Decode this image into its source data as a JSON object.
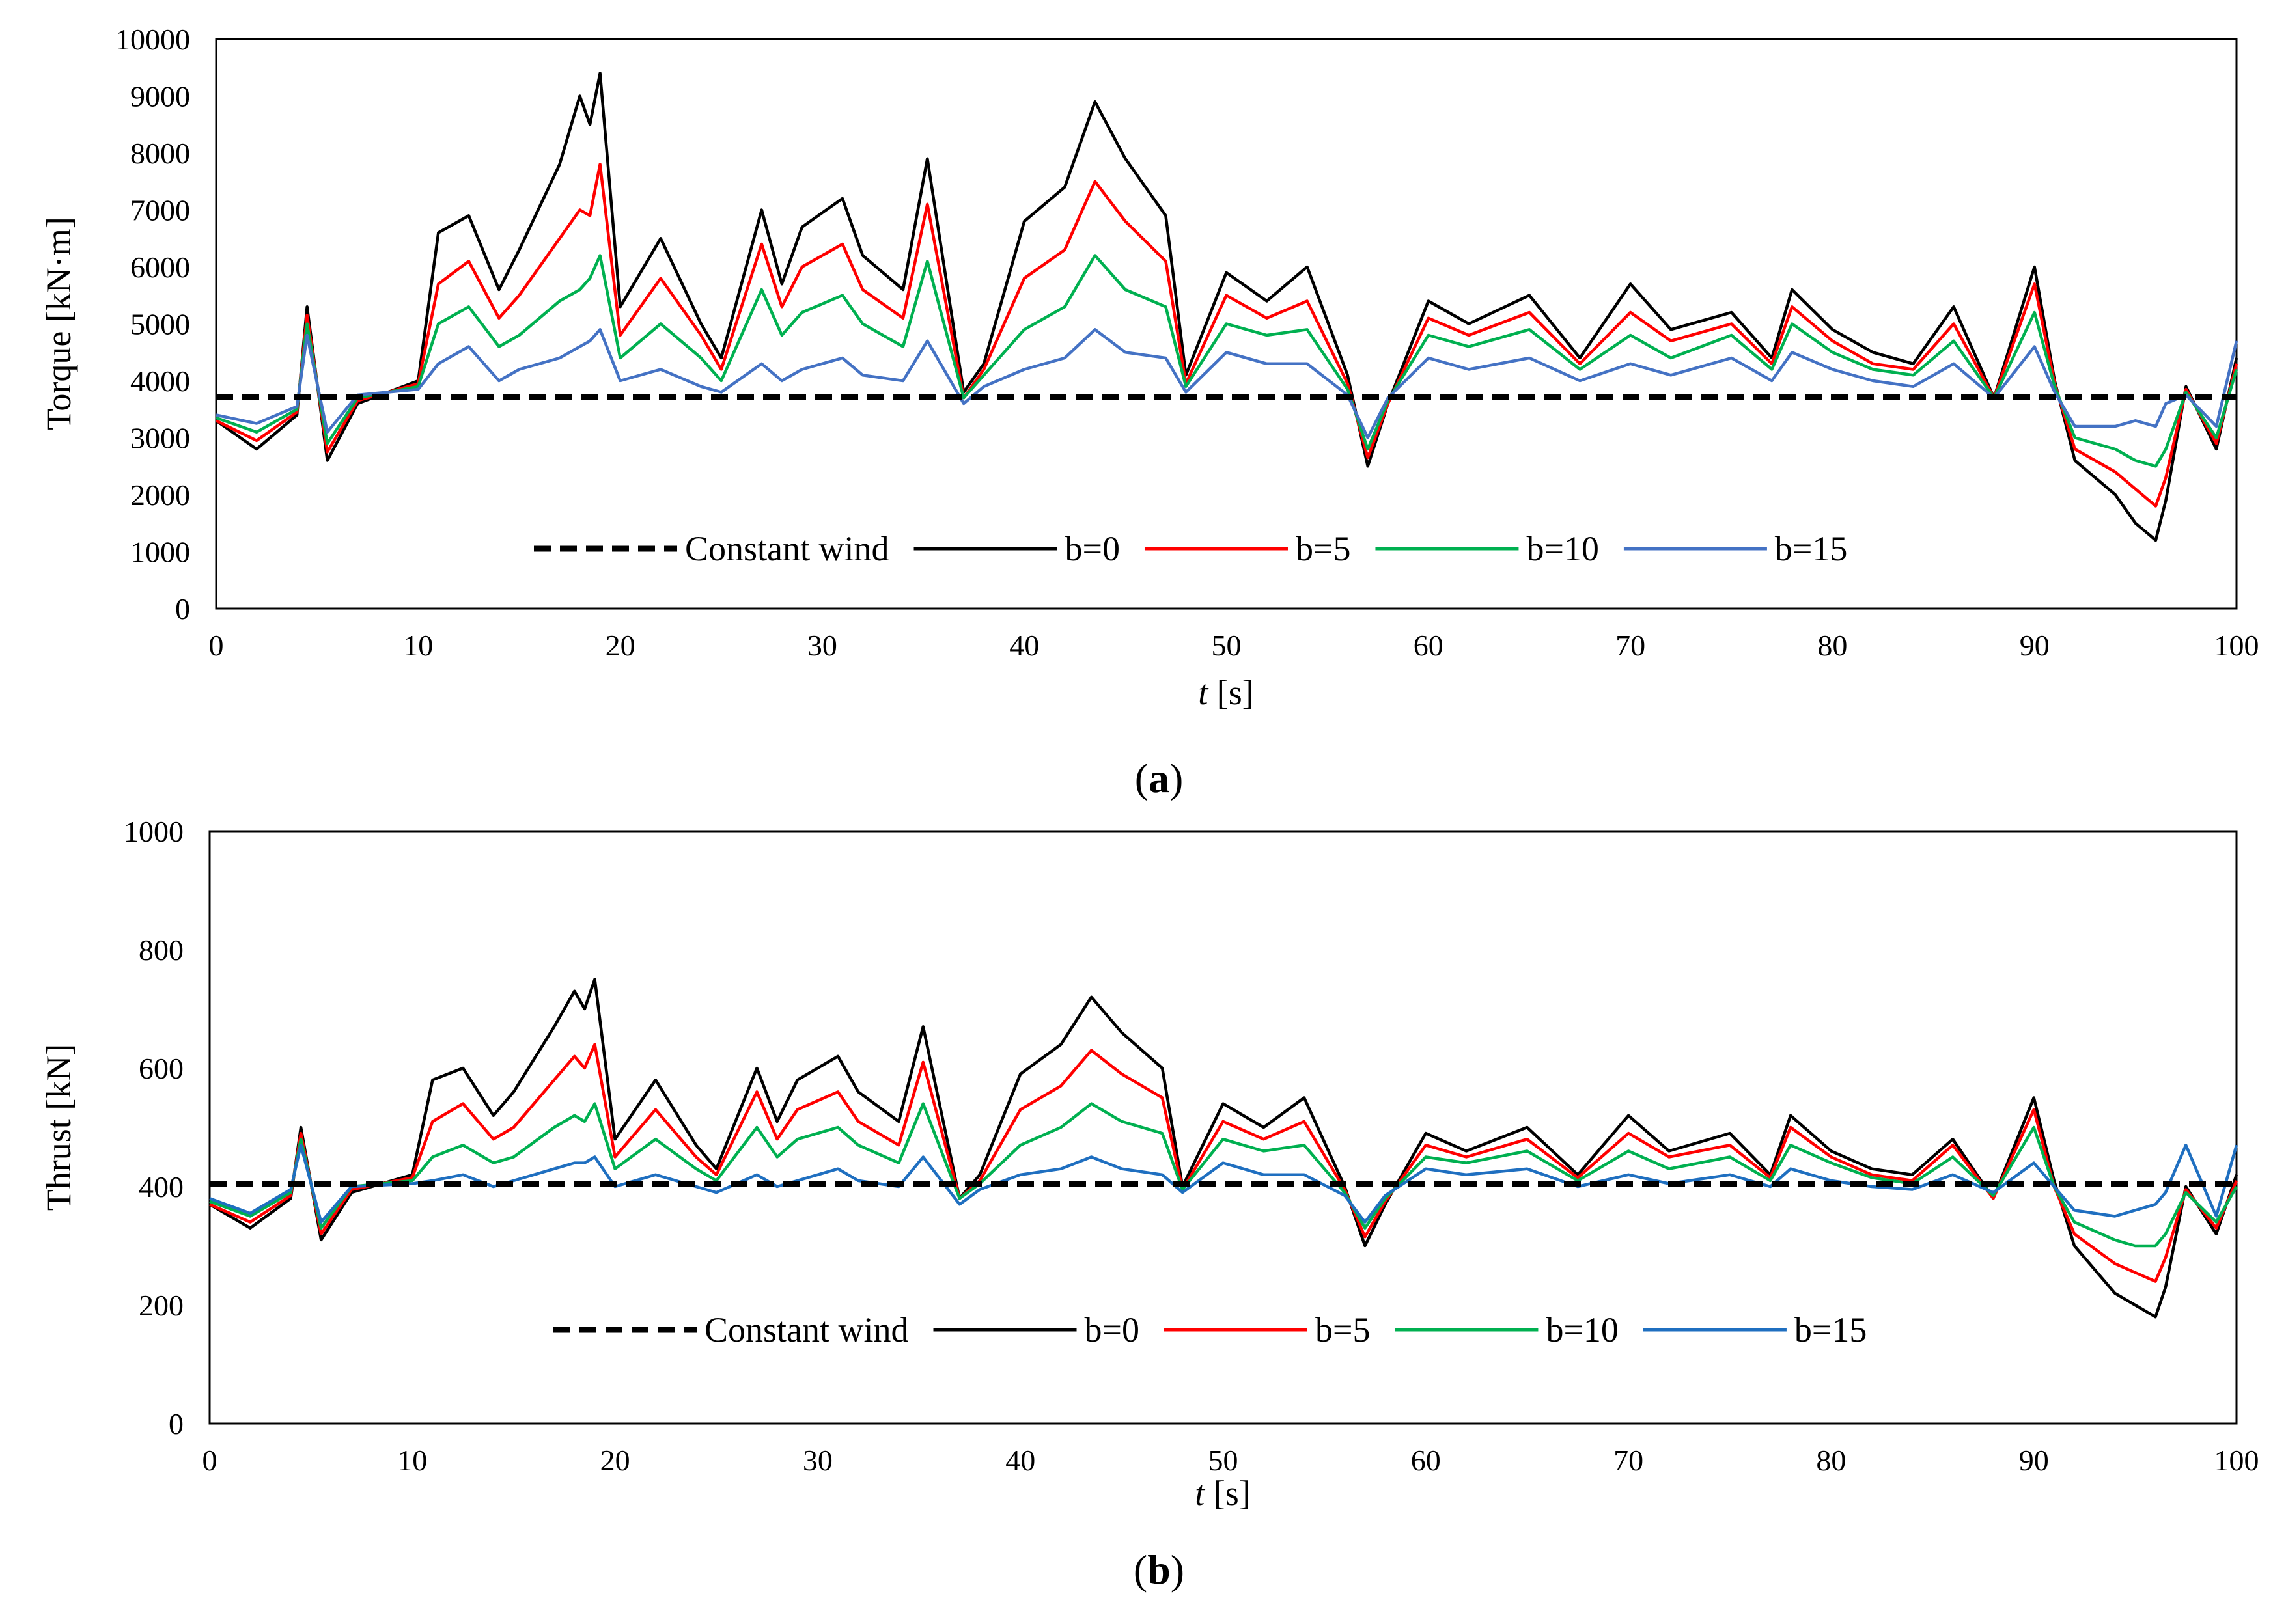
{
  "chart_data": [
    {
      "type": "line",
      "panel_label": "a",
      "xlabel_italic": "t",
      "xlabel_unit": "[s]",
      "ylabel": "Torque [kN·m]",
      "xlim": [
        0,
        100
      ],
      "ylim": [
        0,
        10000
      ],
      "xticks": [
        0,
        10,
        20,
        30,
        40,
        50,
        60,
        70,
        80,
        90,
        100
      ],
      "yticks": [
        0,
        1000,
        2000,
        3000,
        4000,
        5000,
        6000,
        7000,
        8000,
        9000,
        10000
      ],
      "legend_position": "bottom",
      "x": [
        0,
        2,
        4,
        4.5,
        5.5,
        7,
        10,
        11,
        12.5,
        14,
        15,
        17,
        18,
        18.5,
        19,
        20,
        22,
        24,
        25,
        27,
        28,
        29,
        31,
        32,
        34,
        35.2,
        37,
        38,
        40,
        42,
        43.5,
        45,
        47,
        48,
        50,
        52,
        54,
        56,
        57,
        58,
        60,
        62,
        65,
        67.5,
        70,
        72,
        75,
        77,
        78,
        80,
        82,
        84,
        86,
        88,
        90,
        91,
        92,
        94,
        95,
        96,
        96.5,
        97.5,
        99,
        100
      ],
      "series": [
        {
          "name": "Constant wind",
          "color": "#000000",
          "dash": true,
          "values": [
            3720,
            3720,
            3720,
            3720,
            3720,
            3720,
            3720,
            3720,
            3720,
            3720,
            3720,
            3720,
            3720,
            3720,
            3720,
            3720,
            3720,
            3720,
            3720,
            3720,
            3720,
            3720,
            3720,
            3720,
            3720,
            3720,
            3720,
            3720,
            3720,
            3720,
            3720,
            3720,
            3720,
            3720,
            3720,
            3720,
            3720,
            3720,
            3720,
            3720,
            3720,
            3720,
            3720,
            3720,
            3720,
            3720,
            3720,
            3720,
            3720,
            3720,
            3720,
            3720,
            3720,
            3720,
            3720,
            3720,
            3720,
            3720,
            3720,
            3720,
            3720,
            3720,
            3720,
            3720
          ]
        },
        {
          "name": "b=0",
          "color": "#000000",
          "values": [
            3300,
            2800,
            3400,
            5300,
            2600,
            3600,
            4000,
            6600,
            6900,
            5600,
            6300,
            7800,
            9000,
            8500,
            9400,
            5300,
            6500,
            5000,
            4400,
            7000,
            5700,
            6700,
            7200,
            6200,
            5600,
            7900,
            3800,
            4300,
            6800,
            7400,
            8900,
            7900,
            6900,
            4100,
            5900,
            5400,
            6000,
            4100,
            2500,
            3600,
            5400,
            5000,
            5500,
            4400,
            5700,
            4900,
            5200,
            4400,
            5600,
            4900,
            4500,
            4300,
            5300,
            3700,
            6000,
            4000,
            2600,
            2000,
            1500,
            1200,
            1900,
            3900,
            2800,
            4400
          ]
        },
        {
          "name": "b=5",
          "color": "#ff0000",
          "values": [
            3300,
            2950,
            3450,
            5150,
            2750,
            3650,
            3950,
            5700,
            6100,
            5100,
            5500,
            6500,
            7000,
            6900,
            7800,
            4800,
            5800,
            4800,
            4200,
            6400,
            5300,
            6000,
            6400,
            5600,
            5100,
            7100,
            3700,
            4200,
            5800,
            6300,
            7500,
            6800,
            6100,
            3950,
            5500,
            5100,
            5400,
            3950,
            2650,
            3600,
            5100,
            4800,
            5200,
            4300,
            5200,
            4700,
            5000,
            4300,
            5300,
            4700,
            4300,
            4200,
            5000,
            3700,
            5700,
            3950,
            2800,
            2400,
            2100,
            1800,
            2300,
            3850,
            2900,
            4300
          ]
        },
        {
          "name": "b=10",
          "color": "#00b050",
          "values": [
            3350,
            3100,
            3500,
            5000,
            2900,
            3700,
            3900,
            5000,
            5300,
            4600,
            4800,
            5400,
            5600,
            5800,
            6200,
            4400,
            5000,
            4400,
            4000,
            5600,
            4800,
            5200,
            5500,
            5000,
            4600,
            6100,
            3700,
            4100,
            4900,
            5300,
            6200,
            5600,
            5300,
            3900,
            5000,
            4800,
            4900,
            3850,
            2800,
            3650,
            4800,
            4600,
            4900,
            4200,
            4800,
            4400,
            4800,
            4200,
            5000,
            4500,
            4200,
            4100,
            4700,
            3700,
            5200,
            3900,
            3000,
            2800,
            2600,
            2500,
            2800,
            3800,
            3000,
            4200
          ]
        },
        {
          "name": "b=15",
          "color": "#4472c4",
          "values": [
            3400,
            3250,
            3550,
            4800,
            3100,
            3750,
            3850,
            4300,
            4600,
            4000,
            4200,
            4400,
            4600,
            4700,
            4900,
            4000,
            4200,
            3900,
            3800,
            4300,
            4000,
            4200,
            4400,
            4100,
            4000,
            4700,
            3600,
            3900,
            4200,
            4400,
            4900,
            4500,
            4400,
            3800,
            4500,
            4300,
            4300,
            3750,
            3000,
            3700,
            4400,
            4200,
            4400,
            4000,
            4300,
            4100,
            4400,
            4000,
            4500,
            4200,
            4000,
            3900,
            4300,
            3700,
            4600,
            3800,
            3200,
            3200,
            3300,
            3200,
            3600,
            3750,
            3200,
            4700
          ]
        }
      ]
    },
    {
      "type": "line",
      "panel_label": "b",
      "xlabel_italic": "t",
      "xlabel_unit": "[s]",
      "ylabel": "Thrust [kN]",
      "xlim": [
        0,
        100
      ],
      "ylim": [
        0,
        1000
      ],
      "xticks": [
        0,
        10,
        20,
        30,
        40,
        50,
        60,
        70,
        80,
        90,
        100
      ],
      "yticks": [
        0,
        200,
        400,
        600,
        800,
        1000
      ],
      "legend_position": "bottom",
      "x": [
        0,
        2,
        4,
        4.5,
        5.5,
        7,
        10,
        11,
        12.5,
        14,
        15,
        17,
        18,
        18.5,
        19,
        20,
        22,
        24,
        25,
        27,
        28,
        29,
        31,
        32,
        34,
        35.2,
        37,
        38,
        40,
        42,
        43.5,
        45,
        47,
        48,
        50,
        52,
        54,
        56,
        57,
        58,
        60,
        62,
        65,
        67.5,
        70,
        72,
        75,
        77,
        78,
        80,
        82,
        84,
        86,
        88,
        90,
        91,
        92,
        94,
        95,
        96,
        96.5,
        97.5,
        99,
        100
      ],
      "series": [
        {
          "name": "Constant wind",
          "color": "#000000",
          "dash": true,
          "values": [
            405,
            405,
            405,
            405,
            405,
            405,
            405,
            405,
            405,
            405,
            405,
            405,
            405,
            405,
            405,
            405,
            405,
            405,
            405,
            405,
            405,
            405,
            405,
            405,
            405,
            405,
            405,
            405,
            405,
            405,
            405,
            405,
            405,
            405,
            405,
            405,
            405,
            405,
            405,
            405,
            405,
            405,
            405,
            405,
            405,
            405,
            405,
            405,
            405,
            405,
            405,
            405,
            405,
            405,
            405,
            405,
            405,
            405,
            405,
            405,
            405,
            405,
            405,
            405
          ]
        },
        {
          "name": "b=0",
          "color": "#000000",
          "values": [
            370,
            330,
            380,
            500,
            310,
            390,
            420,
            580,
            600,
            520,
            560,
            670,
            730,
            700,
            750,
            480,
            580,
            470,
            430,
            600,
            510,
            580,
            620,
            560,
            510,
            670,
            380,
            420,
            590,
            640,
            720,
            660,
            600,
            400,
            540,
            500,
            550,
            400,
            300,
            370,
            490,
            460,
            500,
            420,
            520,
            460,
            490,
            420,
            520,
            460,
            430,
            420,
            480,
            380,
            550,
            410,
            300,
            220,
            200,
            180,
            230,
            400,
            320,
            420
          ]
        },
        {
          "name": "b=5",
          "color": "#ff0000",
          "values": [
            370,
            340,
            385,
            490,
            320,
            395,
            415,
            510,
            540,
            480,
            500,
            580,
            620,
            600,
            640,
            450,
            530,
            450,
            420,
            560,
            480,
            530,
            560,
            510,
            470,
            610,
            380,
            410,
            530,
            570,
            630,
            590,
            550,
            395,
            510,
            480,
            510,
            395,
            315,
            375,
            470,
            450,
            480,
            415,
            490,
            450,
            470,
            415,
            500,
            450,
            420,
            410,
            470,
            380,
            530,
            400,
            320,
            270,
            255,
            240,
            280,
            395,
            330,
            410
          ]
        },
        {
          "name": "b=10",
          "color": "#00b050",
          "values": [
            375,
            350,
            390,
            480,
            330,
            400,
            410,
            450,
            470,
            440,
            450,
            500,
            520,
            510,
            540,
            430,
            480,
            430,
            410,
            500,
            450,
            480,
            500,
            470,
            440,
            540,
            380,
            405,
            470,
            500,
            540,
            510,
            490,
            395,
            480,
            460,
            470,
            390,
            330,
            380,
            450,
            440,
            460,
            410,
            460,
            430,
            450,
            410,
            470,
            440,
            415,
            405,
            450,
            385,
            500,
            400,
            340,
            310,
            300,
            300,
            320,
            390,
            340,
            400
          ]
        },
        {
          "name": "b=15",
          "color": "#1f6fc0",
          "values": [
            380,
            355,
            395,
            470,
            340,
            400,
            405,
            410,
            420,
            400,
            410,
            430,
            440,
            440,
            450,
            400,
            420,
            400,
            390,
            420,
            400,
            410,
            430,
            410,
            400,
            450,
            370,
            395,
            420,
            430,
            450,
            430,
            420,
            390,
            440,
            420,
            420,
            385,
            340,
            385,
            430,
            420,
            430,
            400,
            420,
            405,
            420,
            400,
            430,
            410,
            400,
            395,
            420,
            390,
            440,
            400,
            360,
            350,
            360,
            370,
            390,
            470,
            350,
            470
          ]
        }
      ]
    }
  ]
}
